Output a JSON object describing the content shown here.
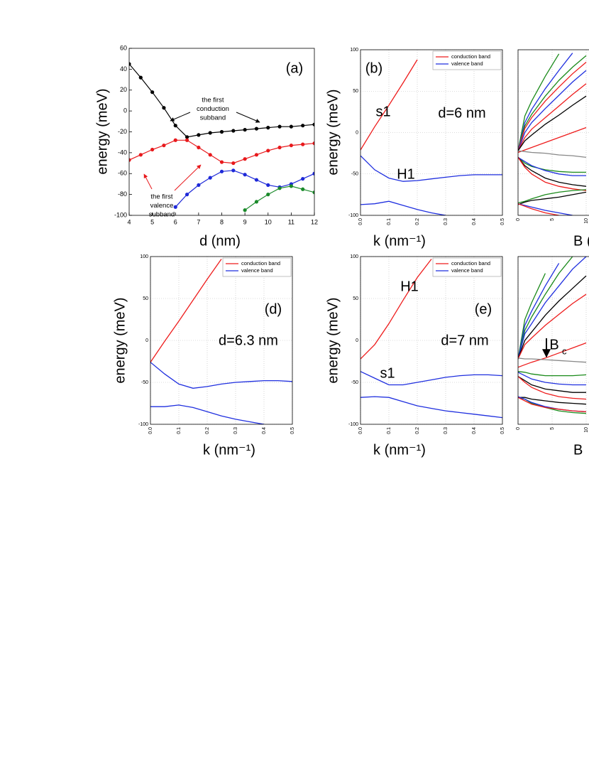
{
  "chart_data": [
    {
      "type": "line",
      "panel_label": "(a)",
      "xlabel": "d (nm)",
      "ylabel": "energy (meV)",
      "xlim": [
        4,
        12
      ],
      "xticks": [
        4,
        5,
        6,
        7,
        8,
        9,
        10,
        11,
        12
      ],
      "ylim": [
        -100,
        60
      ],
      "yticks": [
        -100,
        -80,
        -60,
        -40,
        -20,
        0,
        20,
        40,
        60
      ],
      "grid": false,
      "markers": true,
      "x": [
        4,
        4.5,
        5,
        5.5,
        6,
        6.5,
        7,
        7.5,
        8,
        8.5,
        9,
        9.5,
        10,
        10.5,
        11,
        11.5,
        12
      ],
      "series": [
        {
          "color": "#000000",
          "values": [
            45,
            32,
            18,
            3,
            -14,
            -25,
            -23,
            -21,
            -20,
            -19,
            -18,
            -17,
            -16,
            -15,
            -15,
            -14,
            -13
          ]
        },
        {
          "color": "#e8191c",
          "values": [
            -47,
            -42,
            -37,
            -33,
            -28,
            -28,
            -35,
            -42,
            -49,
            -50,
            -46,
            -42,
            -38,
            -35,
            -33,
            -32,
            -31
          ]
        },
        {
          "color": "#1e29d8",
          "values": [
            null,
            null,
            null,
            null,
            -92,
            -80,
            -71,
            -64,
            -58,
            -57,
            -61,
            -66,
            -71,
            -73,
            -70,
            -65,
            -60
          ]
        },
        {
          "color": "#1a8a2a",
          "values": [
            null,
            null,
            null,
            null,
            null,
            null,
            null,
            null,
            null,
            null,
            -95,
            -87,
            -80,
            -74,
            -72,
            -75,
            -78
          ]
        }
      ],
      "annotations": [
        [
          "the first",
          "conduction",
          "subband"
        ],
        [
          "the first",
          "valence",
          "subband"
        ]
      ]
    },
    {
      "type": "line",
      "panel_label": "(b)",
      "xlabel": "k (nm⁻¹)",
      "ylabel": "energy (meV)",
      "xlim": [
        0,
        0.5
      ],
      "xticks": [
        {
          "value": 0,
          "label": "0.0"
        },
        0.1,
        0.2,
        0.3,
        0.4,
        0.5
      ],
      "ylim": [
        -100,
        100
      ],
      "yticks": [
        -100,
        -50,
        0,
        50,
        100
      ],
      "grid": true,
      "legend": "upper right",
      "x": [
        0,
        0.05,
        0.1,
        0.15,
        0.2,
        0.25,
        0.3,
        0.35,
        0.4,
        0.45,
        0.5
      ],
      "series": [
        {
          "name": "conduction band",
          "color": "#ee1c1c",
          "values": [
            -21,
            7,
            33,
            60,
            88,
            null,
            null,
            null,
            null,
            null,
            null
          ]
        },
        {
          "name": "valence band",
          "color": "#1f2fdf",
          "values": [
            -28,
            -45,
            -55,
            -59,
            -58,
            -56,
            -54,
            -52,
            -51,
            -51,
            -51
          ]
        },
        {
          "name": "valence band",
          "color": "#1f2fdf",
          "values": [
            -87,
            -86,
            -83,
            -88,
            -93,
            -97,
            -100,
            null,
            null,
            null,
            null
          ]
        }
      ],
      "annotations": [
        "s1",
        "H1",
        "d=6 nm"
      ]
    },
    {
      "type": "line",
      "xlabel": "B (",
      "xlim": [
        0,
        20
      ],
      "xticks": [
        0,
        5,
        10
      ],
      "ylim": [
        -100,
        100
      ],
      "yticks": [
        -100,
        -50,
        0,
        50,
        100
      ],
      "grid": true,
      "ytick_labels": false,
      "x": [
        0,
        1,
        2,
        4,
        6,
        8,
        10
      ],
      "series": [
        {
          "color": "#1a8a1a",
          "values": [
            -22,
            20,
            38,
            68,
            95,
            null,
            null
          ]
        },
        {
          "color": "#1f2fdf",
          "values": [
            -22,
            12,
            28,
            53,
            75,
            96,
            null
          ]
        },
        {
          "color": "#1a8a1a",
          "values": [
            -22,
            8,
            22,
            44,
            63,
            79,
            93
          ]
        },
        {
          "color": "#ee1c1c",
          "values": [
            -22,
            5,
            18,
            38,
            55,
            71,
            85
          ]
        },
        {
          "color": "#1f2fdf",
          "values": [
            -22,
            0,
            12,
            29,
            45,
            61,
            75
          ]
        },
        {
          "color": "#ee1c1c",
          "values": [
            -22,
            -6,
            4,
            18,
            32,
            46,
            59
          ]
        },
        {
          "color": "#000000",
          "values": [
            -22,
            -10,
            -3,
            10,
            21,
            33,
            44
          ]
        },
        {
          "color": "#ee1c1c",
          "values": [
            -24,
            -21,
            -18,
            -12,
            -6,
            0,
            6
          ]
        },
        {
          "color": "#888888",
          "values": [
            -22,
            -23,
            -24,
            -25,
            -27,
            -28,
            -30
          ]
        },
        {
          "color": "#1a8a1a",
          "values": [
            -30,
            -37,
            -41,
            -45,
            -47,
            -48,
            -48
          ]
        },
        {
          "color": "#1f2fdf",
          "values": [
            -30,
            -35,
            -40,
            -46,
            -50,
            -52,
            -52
          ]
        },
        {
          "color": "#000000",
          "values": [
            -30,
            -40,
            -46,
            -55,
            -60,
            -63,
            -65
          ]
        },
        {
          "color": "#ee1c1c",
          "values": [
            -30,
            -42,
            -50,
            -60,
            -65,
            -68,
            -70
          ]
        },
        {
          "color": "#1a8a1a",
          "values": [
            -85,
            -83,
            -80,
            -75,
            -72,
            -70,
            -69
          ]
        },
        {
          "color": "#000000",
          "values": [
            -87,
            -84,
            -82,
            -80,
            -78,
            -75,
            -72
          ]
        },
        {
          "color": "#1f2fdf",
          "values": [
            -86,
            -88,
            -90,
            -94,
            -97,
            -100,
            null
          ]
        },
        {
          "color": "#ee1c1c",
          "values": [
            -86,
            -89,
            -92,
            -97,
            -100,
            null,
            null
          ]
        }
      ]
    },
    {
      "type": "line",
      "panel_label": "(d)",
      "xlabel": "k (nm⁻¹)",
      "ylabel": "energy (meV)",
      "xlim": [
        0,
        0.5
      ],
      "xticks": [
        {
          "value": 0,
          "label": "0.0"
        },
        0.1,
        0.2,
        0.3,
        0.4,
        0.5
      ],
      "ylim": [
        -100,
        100
      ],
      "yticks": [
        -100,
        -50,
        0,
        50,
        100
      ],
      "grid": true,
      "legend": "upper right",
      "x": [
        0,
        0.05,
        0.1,
        0.15,
        0.2,
        0.25,
        0.3,
        0.35,
        0.4,
        0.45,
        0.5
      ],
      "series": [
        {
          "name": "conduction band",
          "color": "#ee1c1c",
          "values": [
            -26,
            -1,
            23,
            48,
            73,
            97,
            null,
            null,
            null,
            null,
            null
          ]
        },
        {
          "name": "valence band",
          "color": "#1f2fdf",
          "values": [
            -26,
            -40,
            -52,
            -57,
            -55,
            -52,
            -50,
            -49,
            -48,
            -48,
            -49
          ]
        },
        {
          "name": "valence band",
          "color": "#1f2fdf",
          "values": [
            -79,
            -79,
            -77,
            -80,
            -85,
            -90,
            -94,
            -97,
            -100,
            null,
            null
          ]
        }
      ],
      "annotations": [
        "d=6.3 nm"
      ]
    },
    {
      "type": "line",
      "panel_label": "(e)",
      "xlabel": "k (nm⁻¹)",
      "ylabel": "energy (meV)",
      "xlim": [
        0,
        0.5
      ],
      "xticks": [
        {
          "value": 0,
          "label": "0.0"
        },
        0.1,
        0.2,
        0.3,
        0.4,
        0.5
      ],
      "ylim": [
        -100,
        100
      ],
      "yticks": [
        -100,
        -50,
        0,
        50,
        100
      ],
      "grid": true,
      "legend": "upper right",
      "x": [
        0,
        0.05,
        0.1,
        0.15,
        0.2,
        0.25,
        0.3,
        0.35,
        0.4,
        0.45,
        0.5
      ],
      "series": [
        {
          "name": "conduction band",
          "color": "#ee1c1c",
          "values": [
            -22,
            -5,
            20,
            48,
            75,
            97,
            null,
            null,
            null,
            null,
            null
          ]
        },
        {
          "name": "valence band",
          "color": "#1f2fdf",
          "values": [
            -37,
            -45,
            -53,
            -53,
            -50,
            -47,
            -44,
            -42,
            -41,
            -41,
            -42
          ]
        },
        {
          "name": "valence band",
          "color": "#1f2fdf",
          "values": [
            -68,
            -67,
            -68,
            -73,
            -78,
            -81,
            -84,
            -86,
            -88,
            -90,
            -92
          ]
        }
      ],
      "annotations": [
        "H1",
        "s1",
        "d=7 nm"
      ]
    },
    {
      "type": "line",
      "xlabel": "B",
      "xlim": [
        0,
        20
      ],
      "xticks": [
        0,
        5,
        10
      ],
      "ylim": [
        -100,
        100
      ],
      "yticks": [
        -100,
        -50,
        0,
        50,
        100
      ],
      "grid": true,
      "ytick_labels": false,
      "x": [
        0,
        1,
        2,
        4,
        6,
        8,
        10
      ],
      "series": [
        {
          "color": "#1a8a1a",
          "values": [
            -22,
            25,
            45,
            80,
            null,
            null,
            null
          ]
        },
        {
          "color": "#1f2fdf",
          "values": [
            -22,
            18,
            35,
            65,
            92,
            null,
            null
          ]
        },
        {
          "color": "#1a8a1a",
          "values": [
            -22,
            12,
            28,
            55,
            80,
            100,
            null
          ]
        },
        {
          "color": "#1f2fdf",
          "values": [
            -22,
            8,
            20,
            45,
            65,
            85,
            100
          ]
        },
        {
          "color": "#000000",
          "values": [
            -22,
            0,
            10,
            30,
            47,
            62,
            77
          ]
        },
        {
          "color": "#ee1c1c",
          "values": [
            -22,
            -5,
            3,
            18,
            31,
            44,
            55
          ]
        },
        {
          "color": "#ee1c1c",
          "values": [
            -32,
            -29,
            -26,
            -21,
            -15,
            -9,
            -3
          ]
        },
        {
          "color": "#888888",
          "values": [
            -21,
            -22,
            -22,
            -23,
            -24,
            -25,
            -26
          ]
        },
        {
          "color": "#1a8a1a",
          "values": [
            -37,
            -38,
            -40,
            -42,
            -42,
            -42,
            -41
          ]
        },
        {
          "color": "#1f2fdf",
          "values": [
            -38,
            -42,
            -46,
            -50,
            -52,
            -53,
            -53
          ]
        },
        {
          "color": "#000000",
          "values": [
            -43,
            -48,
            -53,
            -58,
            -60,
            -62,
            -62
          ]
        },
        {
          "color": "#ee1c1c",
          "values": [
            -43,
            -50,
            -56,
            -63,
            -67,
            -69,
            -70
          ]
        },
        {
          "color": "#1a8a1a",
          "values": [
            -68,
            -70,
            -75,
            -80,
            -84,
            -86,
            -87
          ]
        },
        {
          "color": "#000000",
          "values": [
            -68,
            -68,
            -70,
            -72,
            -74,
            -75,
            -76
          ]
        },
        {
          "color": "#1f2fdf",
          "values": [
            -67,
            -70,
            -74,
            -79,
            -82,
            -84,
            -85
          ]
        },
        {
          "color": "#ee1c1c",
          "values": [
            -68,
            -72,
            -76,
            -80,
            -82,
            -84,
            -85
          ]
        }
      ],
      "annotations": [
        "B",
        "c"
      ]
    }
  ]
}
